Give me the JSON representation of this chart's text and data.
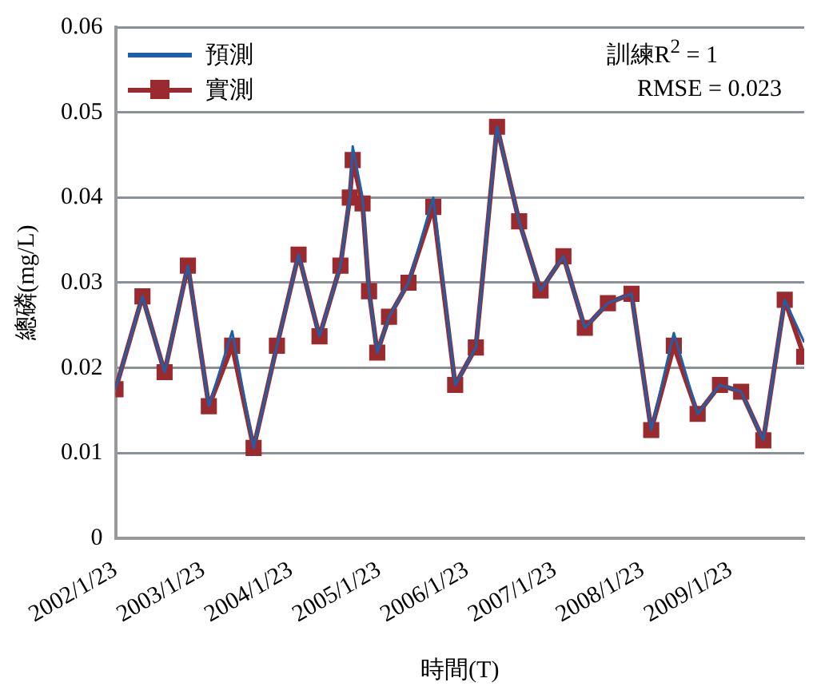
{
  "chart_data": {
    "type": "line",
    "xlabel": "時間(T)",
    "ylabel": "總磷(mg/L)",
    "x": [
      "2002-01-23",
      "2002-05-15",
      "2002-08-15",
      "2002-11-20",
      "2003-02-15",
      "2003-05-23",
      "2003-08-20",
      "2003-11-25",
      "2004-02-23",
      "2004-05-20",
      "2004-08-15",
      "2004-09-23",
      "2004-10-05",
      "2004-11-15",
      "2004-12-12",
      "2005-01-15",
      "2005-03-05",
      "2005-05-25",
      "2005-09-05",
      "2005-12-05",
      "2006-03-01",
      "2006-05-28",
      "2006-08-28",
      "2006-11-25",
      "2007-02-28",
      "2007-05-28",
      "2007-09-01",
      "2007-12-08",
      "2008-02-28",
      "2008-06-01",
      "2008-09-08",
      "2008-12-10",
      "2009-03-08",
      "2009-06-08",
      "2009-09-05",
      "2009-11-25"
    ],
    "series": [
      {
        "name": "預測",
        "color": "#1f5fa8",
        "marker": "none",
        "values": [
          0.0175,
          0.0284,
          0.0195,
          0.032,
          0.0155,
          0.0243,
          0.0106,
          0.0226,
          0.0333,
          0.0237,
          0.032,
          0.04,
          0.046,
          0.04,
          0.029,
          0.0218,
          0.026,
          0.03,
          0.04,
          0.018,
          0.0224,
          0.0483,
          0.0372,
          0.0291,
          0.0331,
          0.0247,
          0.0276,
          0.0287,
          0.0127,
          0.0241,
          0.0146,
          0.018,
          0.0172,
          0.0115,
          0.028,
          0.023
        ]
      },
      {
        "name": "實測",
        "color": "#9b2a2e",
        "marker": "square",
        "values": [
          0.0175,
          0.0284,
          0.0195,
          0.032,
          0.0155,
          0.0226,
          0.0106,
          0.0226,
          0.0333,
          0.0237,
          0.032,
          0.04,
          0.0444,
          0.0393,
          0.029,
          0.0218,
          0.026,
          0.03,
          0.0389,
          0.018,
          0.0224,
          0.0483,
          0.0372,
          0.0291,
          0.0331,
          0.0247,
          0.0276,
          0.0287,
          0.0127,
          0.0226,
          0.0146,
          0.018,
          0.0172,
          0.0115,
          0.028,
          0.0213
        ]
      }
    ],
    "xlim": [
      "2002-01-23",
      "2009-11-25"
    ],
    "xticks": [
      {
        "value": "2002-01-23",
        "label": "2002/1/23"
      },
      {
        "value": "2003-01-23",
        "label": "2003/1/23"
      },
      {
        "value": "2004-01-23",
        "label": "2004/1/23"
      },
      {
        "value": "2005-01-23",
        "label": "2005/1/23"
      },
      {
        "value": "2006-01-23",
        "label": "2006/1/23"
      },
      {
        "value": "2007-01-23",
        "label": "2007/1/23"
      },
      {
        "value": "2008-01-23",
        "label": "2008/1/23"
      },
      {
        "value": "2009-01-23",
        "label": "2009/1/23"
      }
    ],
    "ylim": [
      0,
      0.06
    ],
    "yticks": [
      0,
      0.01,
      0.02,
      0.03,
      0.04,
      0.05,
      0.06
    ],
    "grid": "y",
    "legend": "top left",
    "line_style": "solid",
    "annotations": [
      "訓練R$^{2}$ = 1",
      "RMSE = 0.023"
    ]
  }
}
